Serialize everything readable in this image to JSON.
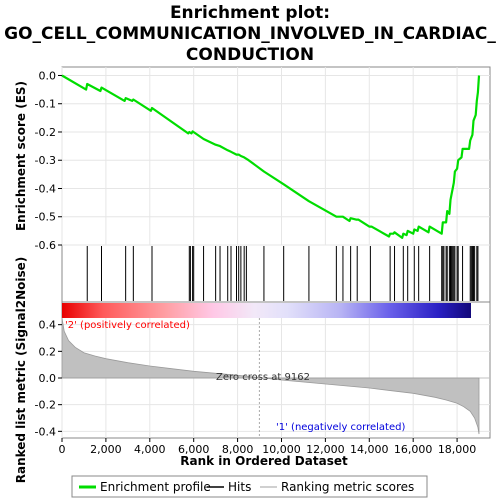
{
  "title_lines": [
    "Enrichment plot:",
    "GO_CELL_COMMUNICATION_INVOLVED_IN_CARDIAC_",
    "CONDUCTION"
  ],
  "colors": {
    "es_line": "#00dd00",
    "hits": "#000000",
    "metric_fill": "#c0c0c0",
    "pos_label": "#ff0000",
    "neg_label": "#0000dd",
    "grid": "#e6e6e6",
    "frame": "#888888"
  },
  "legend": {
    "items": [
      {
        "label": "Enrichment profile",
        "swatch": "green-line"
      },
      {
        "label": "Hits",
        "swatch": "black-line"
      },
      {
        "label": "Ranking metric scores",
        "swatch": "grey-line"
      }
    ]
  },
  "chart_data": [
    {
      "type": "line",
      "name": "enrichment-profile",
      "ylabel": "Enrichment score (ES)",
      "xlim": [
        0,
        19500
      ],
      "ylim": [
        -0.6,
        0.03
      ],
      "yticks": [
        0.0,
        -0.1,
        -0.2,
        -0.3,
        -0.4,
        -0.5,
        -0.6
      ],
      "ytick_labels": [
        "0.0",
        "-0.1",
        "-0.2",
        "-0.3",
        "-0.4",
        "-0.5",
        "-0.6"
      ],
      "grid": true,
      "x": [
        0,
        1100,
        1150,
        1750,
        1800,
        2850,
        2900,
        3200,
        3250,
        4050,
        4100,
        5750,
        5800,
        5900,
        5950,
        6450,
        7000,
        7200,
        7550,
        7700,
        7950,
        8050,
        8150,
        8300,
        8500,
        9200,
        10100,
        11250,
        12500,
        12800,
        13100,
        13150,
        13400,
        13500,
        14000,
        14100,
        14900,
        14950,
        15100,
        15150,
        15500,
        15550,
        15700,
        15750,
        16000,
        16050,
        16200,
        16250,
        16700,
        16750,
        17300,
        17350,
        17500,
        17550,
        17650,
        17700,
        17750,
        17800,
        17850,
        17900,
        18000,
        18050,
        18200,
        18250,
        18550,
        18600,
        18700,
        18750,
        18850,
        18900,
        18950,
        19000
      ],
      "y": [
        0.0,
        -0.05,
        -0.03,
        -0.055,
        -0.043,
        -0.09,
        -0.08,
        -0.09,
        -0.085,
        -0.125,
        -0.115,
        -0.205,
        -0.2,
        -0.205,
        -0.198,
        -0.225,
        -0.245,
        -0.25,
        -0.265,
        -0.27,
        -0.28,
        -0.28,
        -0.285,
        -0.29,
        -0.3,
        -0.34,
        -0.385,
        -0.445,
        -0.5,
        -0.5,
        -0.515,
        -0.505,
        -0.51,
        -0.51,
        -0.535,
        -0.535,
        -0.57,
        -0.56,
        -0.56,
        -0.555,
        -0.575,
        -0.56,
        -0.565,
        -0.55,
        -0.56,
        -0.545,
        -0.55,
        -0.535,
        -0.555,
        -0.535,
        -0.56,
        -0.52,
        -0.52,
        -0.48,
        -0.49,
        -0.44,
        -0.42,
        -0.4,
        -0.38,
        -0.34,
        -0.33,
        -0.3,
        -0.29,
        -0.26,
        -0.26,
        -0.23,
        -0.21,
        -0.16,
        -0.14,
        -0.09,
        -0.06,
        0.0
      ]
    },
    {
      "type": "scatter",
      "name": "hits",
      "x": [
        1150,
        1800,
        2900,
        3250,
        4100,
        5800,
        5850,
        5950,
        6000,
        6450,
        7000,
        7200,
        7550,
        7700,
        7950,
        8050,
        8150,
        8300,
        8400,
        9200,
        10100,
        11250,
        12500,
        12800,
        13150,
        13450,
        14050,
        14950,
        15150,
        15550,
        15750,
        16050,
        16250,
        16750,
        17300,
        17350,
        17400,
        17500,
        17550,
        17650,
        17700,
        17750,
        17800,
        17850,
        17900,
        18000,
        18050,
        18250,
        18600,
        18650,
        18700,
        18750,
        18800,
        18900,
        18950
      ]
    },
    {
      "type": "area",
      "name": "ranked-list-metric",
      "ylabel": "Ranked list metric (Signal2Noise)",
      "xlabel": "Rank in Ordered Dataset",
      "xlim": [
        0,
        19500
      ],
      "ylim": [
        -0.45,
        0.45
      ],
      "yticks": [
        0.4,
        0.2,
        0.0,
        -0.2,
        -0.4
      ],
      "ytick_labels": [
        "0.4",
        "0.2",
        "0.0",
        "-0.2",
        "-0.4"
      ],
      "xticks": [
        0,
        2000,
        4000,
        6000,
        8000,
        10000,
        12000,
        14000,
        16000,
        18000
      ],
      "xtick_labels": [
        "0",
        "2,000",
        "4,000",
        "6,000",
        "8,000",
        "10,000",
        "12,000",
        "14,000",
        "16,000",
        "18,000"
      ],
      "x": [
        0,
        100,
        300,
        600,
        1000,
        1500,
        2000,
        3000,
        4000,
        5000,
        6000,
        7000,
        8000,
        9162,
        10000,
        11000,
        12000,
        13000,
        14000,
        15000,
        16000,
        17000,
        17500,
        18000,
        18300,
        18600,
        18800,
        18950,
        19000
      ],
      "y": [
        0.45,
        0.35,
        0.28,
        0.23,
        0.19,
        0.165,
        0.145,
        0.115,
        0.09,
        0.07,
        0.05,
        0.035,
        0.02,
        0.0,
        -0.015,
        -0.03,
        -0.045,
        -0.06,
        -0.075,
        -0.095,
        -0.115,
        -0.145,
        -0.165,
        -0.19,
        -0.215,
        -0.25,
        -0.3,
        -0.37,
        -0.42
      ],
      "zero_cross_label": "Zero cross at 9162",
      "pos_label": "'2' (positively correlated)",
      "neg_label": "'1' (negatively correlated)"
    }
  ]
}
